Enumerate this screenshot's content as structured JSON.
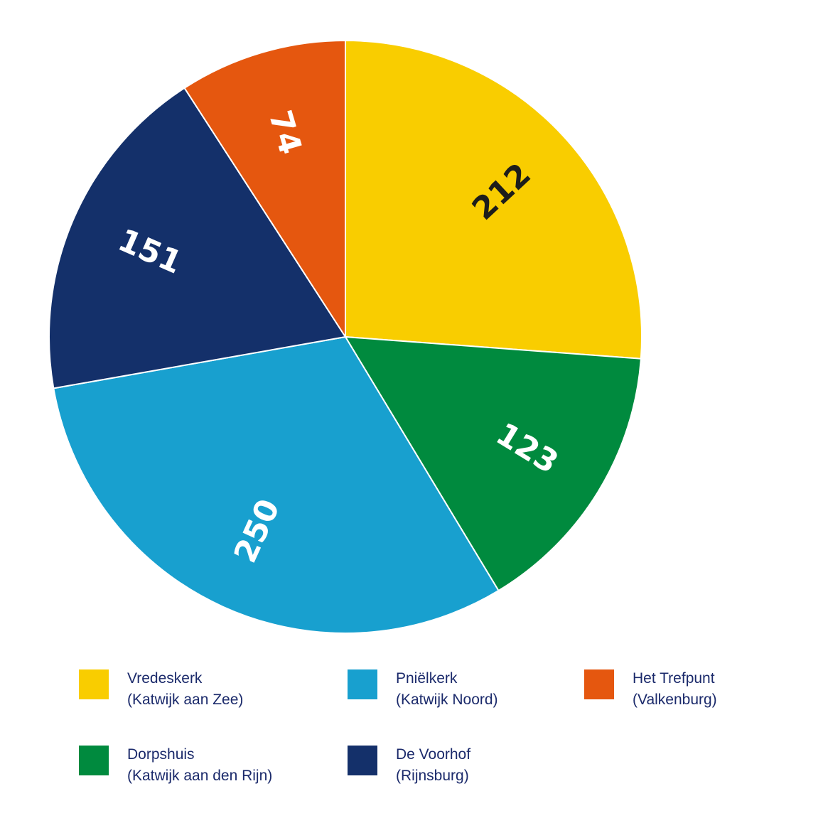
{
  "chart_data": {
    "type": "pie",
    "start_angle_deg": 0,
    "direction": "clockwise",
    "slices": [
      {
        "name": "Vredeskerk",
        "sub": "(Katwijk aan Zee)",
        "value": 212,
        "color": "#f9cd00",
        "label_color": "#1d1d1b"
      },
      {
        "name": "Dorpshuis",
        "sub": "(Katwijk aan den Rijn)",
        "value": 123,
        "color": "#008a3e",
        "label_color": "#ffffff"
      },
      {
        "name": "Pniëlkerk",
        "sub": "(Katwijk Noord)",
        "value": 250,
        "color": "#18a0cf",
        "label_color": "#ffffff"
      },
      {
        "name": "De Voorhof",
        "sub": "(Rijnsburg)",
        "value": 151,
        "color": "#14306a",
        "label_color": "#ffffff"
      },
      {
        "name": "Het Trefpunt",
        "sub": "(Valkenburg)",
        "value": 74,
        "color": "#e5570f",
        "label_color": "#ffffff"
      }
    ]
  },
  "legend": [
    {
      "name": "Vredeskerk",
      "sub": "(Katwijk aan Zee)",
      "color": "#f9cd00"
    },
    {
      "name": "Pniëlkerk",
      "sub": "(Katwijk Noord)",
      "color": "#18a0cf"
    },
    {
      "name": "Het Trefpunt",
      "sub": "(Valkenburg)",
      "color": "#e5570f"
    },
    {
      "name": "Dorpshuis",
      "sub": "(Katwijk aan den Rijn)",
      "color": "#008a3e"
    },
    {
      "name": "De Voorhof",
      "sub": "(Rijnsburg)",
      "color": "#14306a"
    }
  ]
}
